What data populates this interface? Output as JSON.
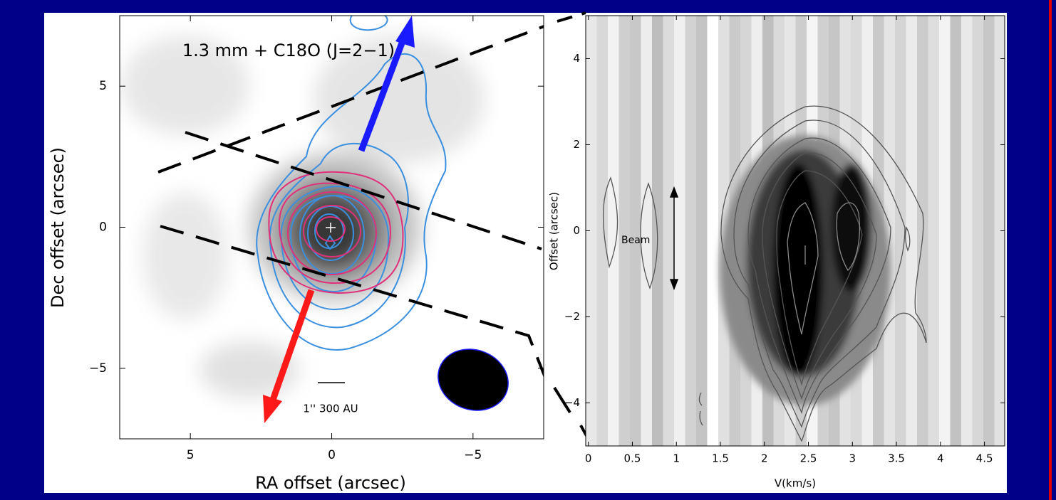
{
  "chart_data": [
    {
      "type": "image",
      "title": "1.3 mm + C18O (J=2−1)",
      "xlabel": "RA offset (arcsec)",
      "ylabel": "Dec offset (arcsec)",
      "xlim": [
        7.5,
        -7.5
      ],
      "ylim": [
        -7.5,
        7.5
      ],
      "xticks": [
        5,
        0,
        {
          "value": -5,
          "label": "−5"
        }
      ],
      "yticks": [
        {
          "value": -5,
          "label": "−5"
        },
        0,
        5
      ],
      "annotations": [
        "1'' 300 AU"
      ]
    },
    {
      "type": "image",
      "xlabel": "V(km/s)",
      "ylabel": "Offset (arcsec)",
      "xlim": [
        -0.03,
        4.73
      ],
      "ylim": [
        -5,
        5
      ],
      "xticks": [
        0,
        0.5,
        1,
        1.5,
        2,
        2.5,
        3,
        3.5,
        4,
        4.5
      ],
      "yticks": [
        {
          "value": -4,
          "label": "−4"
        },
        {
          "value": -2,
          "label": "−2"
        },
        0,
        2,
        4
      ],
      "annotations": [
        "Beam"
      ]
    }
  ]
}
